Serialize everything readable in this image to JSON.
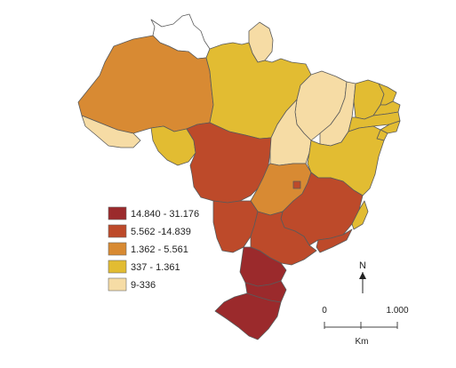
{
  "colors": {
    "c1": "#9b2a2c",
    "c2": "#bd4a2a",
    "c3": "#d88a33",
    "c4": "#e2bc32",
    "c5": "#f6dca5",
    "none": "#ffffff",
    "border": "#5a5a5a"
  },
  "legend": [
    {
      "label": "14.840 - 31.176",
      "color": "c1"
    },
    {
      "label": "5.562 -14.839",
      "color": "c2"
    },
    {
      "label": "1.362 - 5.561",
      "color": "c3"
    },
    {
      "label": "337 - 1.361",
      "color": "c4"
    },
    {
      "label": "9-336",
      "color": "c5"
    }
  ],
  "north": {
    "label": "N"
  },
  "scale": {
    "start": "0",
    "end": "1.000",
    "unit": "Km"
  },
  "regions": [
    {
      "id": "RR",
      "class": "none"
    },
    {
      "id": "AP",
      "class": "c5"
    },
    {
      "id": "AM",
      "class": "c3"
    },
    {
      "id": "PA",
      "class": "c4"
    },
    {
      "id": "AC",
      "class": "c5"
    },
    {
      "id": "RO",
      "class": "c4"
    },
    {
      "id": "MT",
      "class": "c2"
    },
    {
      "id": "MA",
      "class": "c5"
    },
    {
      "id": "PI",
      "class": "c5"
    },
    {
      "id": "CE",
      "class": "c4"
    },
    {
      "id": "RN",
      "class": "c4"
    },
    {
      "id": "PB",
      "class": "c4"
    },
    {
      "id": "PE",
      "class": "c4"
    },
    {
      "id": "AL",
      "class": "c4"
    },
    {
      "id": "SE",
      "class": "c4"
    },
    {
      "id": "TO",
      "class": "c5"
    },
    {
      "id": "BA",
      "class": "c4"
    },
    {
      "id": "GO",
      "class": "c3"
    },
    {
      "id": "DF",
      "class": "c2"
    },
    {
      "id": "MG",
      "class": "c2"
    },
    {
      "id": "ES",
      "class": "c4"
    },
    {
      "id": "MS",
      "class": "c2"
    },
    {
      "id": "SP",
      "class": "c2"
    },
    {
      "id": "RJ",
      "class": "c2"
    },
    {
      "id": "PR",
      "class": "c1"
    },
    {
      "id": "SC",
      "class": "c1"
    },
    {
      "id": "RS",
      "class": "c1"
    }
  ]
}
